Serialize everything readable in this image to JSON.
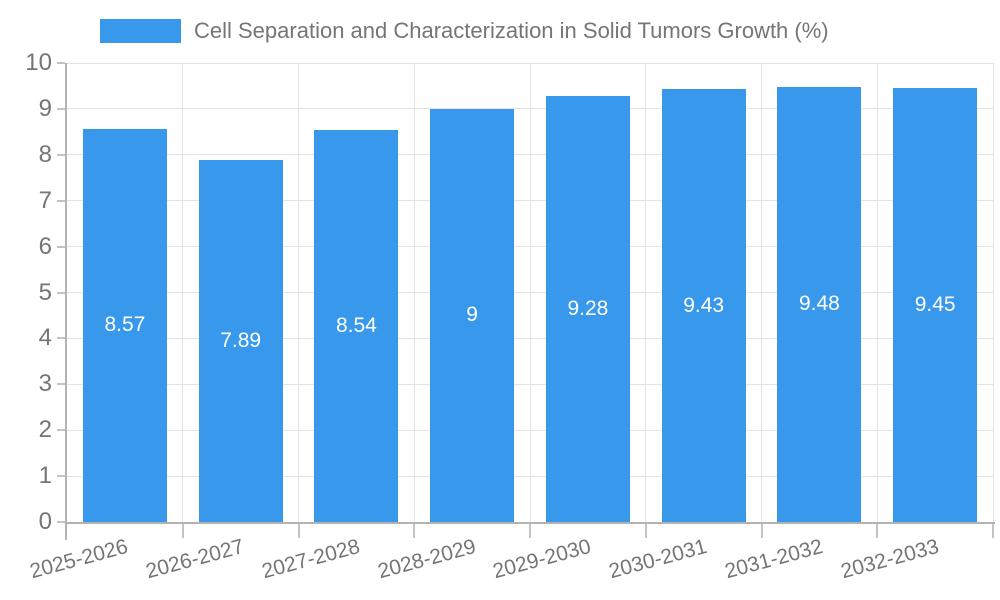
{
  "chart_data": {
    "type": "bar",
    "title": "Cell Separation and Characterization in Solid Tumors Growth (%)",
    "categories": [
      "2025-2026",
      "2026-2027",
      "2027-2028",
      "2028-2029",
      "2029-2030",
      "2030-2031",
      "2031-2032",
      "2032-2033"
    ],
    "values": [
      8.57,
      7.89,
      8.54,
      9,
      9.28,
      9.43,
      9.48,
      9.45
    ],
    "value_labels": [
      "8.57",
      "7.89",
      "8.54",
      "9",
      "9.28",
      "9.43",
      "9.48",
      "9.45"
    ],
    "xlabel": "",
    "ylabel": "",
    "ylim": [
      0,
      10
    ],
    "ytick_step": 1,
    "yticks": [
      "0",
      "1",
      "2",
      "3",
      "4",
      "5",
      "6",
      "7",
      "8",
      "9",
      "10"
    ],
    "grid": true,
    "legend_position": "top",
    "value_label_position": "center-of-bar",
    "colors": {
      "bar": "#3899ec",
      "axis_label": "#757575",
      "value_label": "#ffffff",
      "gridline": "#e3e3e3",
      "axis_line": "#b3b3b3",
      "tick": "#c4c4c4",
      "background": "#ffffff"
    }
  }
}
